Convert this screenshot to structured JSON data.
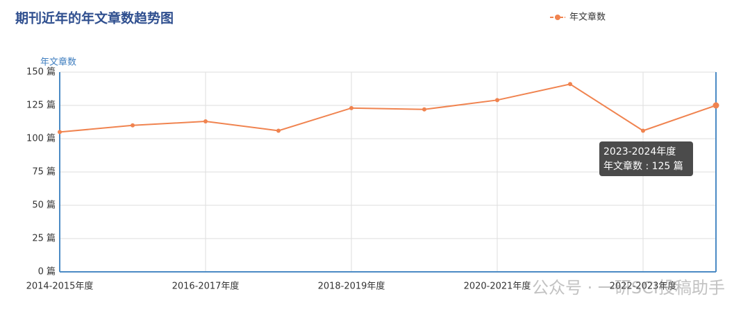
{
  "chart_data": {
    "type": "line",
    "title": "期刊近年的年文章数趋势图",
    "y_axis_label": "年文章数",
    "categories": [
      "2014-2015年度",
      null,
      "2016-2017年度",
      null,
      "2018-2019年度",
      null,
      "2020-2021年度",
      null,
      "2022-2023年度",
      null
    ],
    "series": [
      {
        "name": "年文章数",
        "color": "#f0834f",
        "values": [
          105,
          110,
          113,
          106,
          123,
          122,
          129,
          141,
          106,
          125
        ]
      }
    ],
    "ylim": [
      0,
      150
    ],
    "yticks": [
      {
        "value": 0,
        "label": "0 篇"
      },
      {
        "value": 25,
        "label": "25 篇"
      },
      {
        "value": 50,
        "label": "50 篇"
      },
      {
        "value": 75,
        "label": "75 篇"
      },
      {
        "value": 100,
        "label": "100 篇"
      },
      {
        "value": 125,
        "label": "125 篇"
      },
      {
        "value": 150,
        "label": "150 篇"
      }
    ],
    "grid": true,
    "legend": "top-right",
    "tooltip": {
      "category": "2023-2024年度",
      "label": "年文章数 : 125 篇"
    },
    "watermark": "公众号 · 一研SCI投稿助手"
  }
}
